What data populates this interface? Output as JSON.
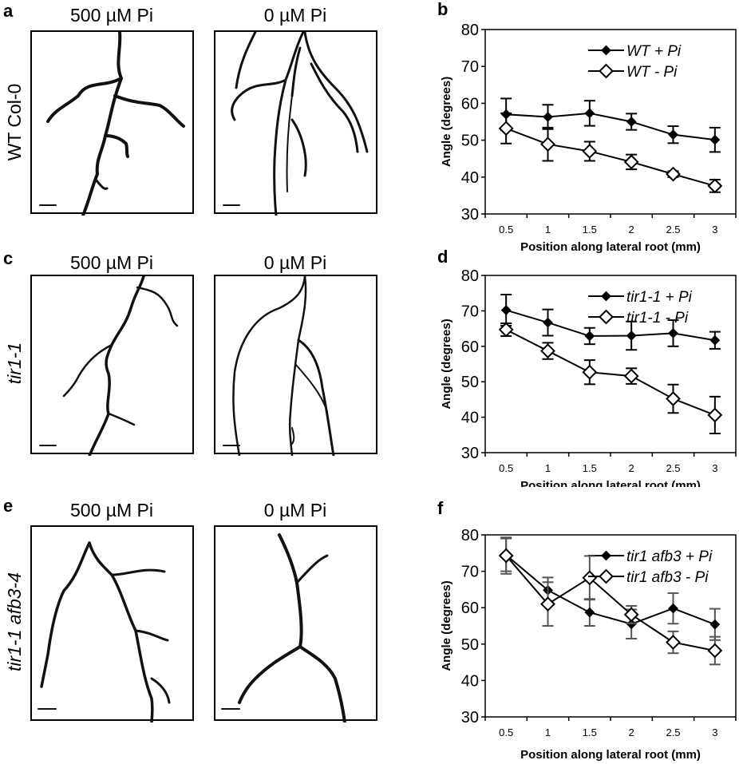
{
  "panels": {
    "a": "a",
    "b": "b",
    "c": "c",
    "d": "d",
    "e": "e",
    "f": "f"
  },
  "column_titles": {
    "high": "500 µM Pi",
    "low": "0 µM Pi"
  },
  "row_labels": {
    "row1": "WT Col-0",
    "row2": "tir1-1",
    "row3": "tir1-1 afb3-4"
  },
  "chart_data": [
    {
      "panel": "b",
      "type": "line",
      "xlabel": "Position along lateral root (mm)",
      "ylabel": "Angle (degrees)",
      "categories": [
        "0.5",
        "1",
        "1.5",
        "2",
        "2.5",
        "3"
      ],
      "ylim": [
        30,
        80
      ],
      "yticks": [
        "30",
        "40",
        "50",
        "60",
        "70",
        "80"
      ],
      "grid": false,
      "legend": "top-right",
      "series": [
        {
          "name": "WT  + Pi",
          "marker": "filled-diamond",
          "values": [
            57.0,
            56.3,
            57.3,
            55.0,
            51.5,
            50.1
          ],
          "errors": [
            4.3,
            3.3,
            3.4,
            2.2,
            2.3,
            3.3
          ]
        },
        {
          "name": "WT  - Pi",
          "marker": "open-diamond",
          "values": [
            53.2,
            48.9,
            47.0,
            44.1,
            40.8,
            37.6
          ],
          "errors": [
            4.1,
            4.5,
            2.6,
            2.0,
            0.8,
            1.7
          ]
        }
      ]
    },
    {
      "panel": "d",
      "type": "line",
      "xlabel": "Position along lateral root (mm)",
      "ylabel": "Angle (degrees)",
      "categories": [
        "0.5",
        "1",
        "1.5",
        "2",
        "2.5",
        "3"
      ],
      "ylim": [
        30,
        80
      ],
      "yticks": [
        "30",
        "40",
        "50",
        "60",
        "70",
        "80"
      ],
      "grid": false,
      "legend": "top-right",
      "series": [
        {
          "name": "tir1-1 + Pi",
          "marker": "filled-diamond",
          "values": [
            70.2,
            66.7,
            62.9,
            63.0,
            63.7,
            61.7
          ],
          "errors": [
            4.4,
            3.7,
            2.3,
            4.0,
            3.7,
            2.4
          ]
        },
        {
          "name": "tir1-1 - Pi",
          "marker": "open-diamond",
          "values": [
            64.7,
            58.7,
            52.7,
            51.6,
            45.2,
            40.6
          ],
          "errors": [
            1.8,
            2.3,
            3.4,
            2.2,
            4.0,
            5.2
          ]
        }
      ]
    },
    {
      "panel": "f",
      "type": "line",
      "xlabel": "Position along lateral root (mm)",
      "ylabel": "Angle (degrees)",
      "categories": [
        "0.5",
        "1",
        "1.5",
        "2",
        "2.5",
        "3"
      ],
      "ylim": [
        30,
        80
      ],
      "yticks": [
        "30",
        "40",
        "50",
        "60",
        "70",
        "80"
      ],
      "grid": false,
      "legend": "top-right",
      "series": [
        {
          "name": "tir1 afb3 + Pi",
          "marker": "filled-diamond",
          "values": [
            74.5,
            64.8,
            58.7,
            55.5,
            59.8,
            55.4
          ],
          "errors": [
            4.5,
            3.5,
            3.7,
            4.0,
            4.2,
            4.3
          ]
        },
        {
          "name": "tir1 afb3 - Pi",
          "marker": "open-diamond",
          "values": [
            74.3,
            61.0,
            68.2,
            58.1,
            50.5,
            48.2
          ],
          "errors": [
            5.0,
            6.0,
            6.0,
            2.4,
            3.0,
            3.8
          ]
        }
      ]
    }
  ]
}
